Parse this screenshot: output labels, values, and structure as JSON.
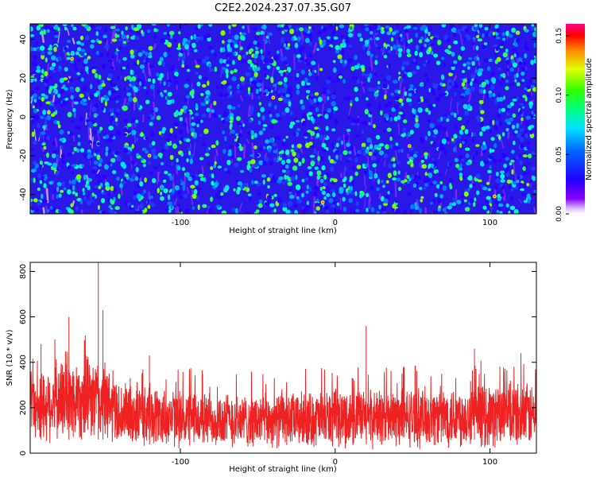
{
  "chart_data": [
    {
      "type": "heatmap",
      "title": "C2E2.2024.237.07.35.G07",
      "xlabel": "Height of straight line (km)",
      "ylabel": "Frequency (Hz)",
      "xlim": [
        -197,
        130
      ],
      "ylim": [
        -50,
        48
      ],
      "x_ticks": [
        -100,
        0,
        100
      ],
      "y_ticks": [
        -40,
        -20,
        0,
        20,
        40
      ],
      "colorbar": {
        "label": "Normalized spectral amplitude",
        "range": [
          0,
          0.16
        ],
        "ticks": [
          "0.00",
          "0.05",
          "0.10",
          "0.15"
        ]
      },
      "description_values": {
        "background_level": 0.03,
        "peak_level": 0.16
      }
    },
    {
      "type": "line",
      "xlabel": "Height of straight line (km)",
      "ylabel": "SNR (10 * v/v)",
      "xlim": [
        -197,
        130
      ],
      "ylim": [
        0,
        840
      ],
      "x_ticks": [
        -100,
        0,
        100
      ],
      "y_ticks": [
        0,
        200,
        400,
        600,
        800
      ],
      "series": [
        {
          "color": "#ee2222",
          "peaks": [
            {
              "x": -153,
              "y": 840
            },
            {
              "x": -150,
              "y": 630
            },
            {
              "x": -172,
              "y": 600
            },
            {
              "x": -190,
              "y": 480
            },
            {
              "x": -120,
              "y": 430
            },
            {
              "x": 20,
              "y": 560
            },
            {
              "x": 90,
              "y": 460
            },
            {
              "x": 120,
              "y": 440
            }
          ],
          "envelope": [
            {
              "x": -197,
              "low": 30,
              "high": 350
            },
            {
              "x": -180,
              "low": 40,
              "high": 420
            },
            {
              "x": -165,
              "low": 40,
              "high": 450
            },
            {
              "x": -150,
              "low": 40,
              "high": 420
            },
            {
              "x": -140,
              "low": 20,
              "high": 330
            },
            {
              "x": -100,
              "low": 15,
              "high": 290
            },
            {
              "x": -50,
              "low": 15,
              "high": 270
            },
            {
              "x": 0,
              "low": 15,
              "high": 290
            },
            {
              "x": 50,
              "low": 15,
              "high": 300
            },
            {
              "x": 100,
              "low": 15,
              "high": 320
            },
            {
              "x": 130,
              "low": 15,
              "high": 320
            }
          ]
        }
      ]
    }
  ]
}
